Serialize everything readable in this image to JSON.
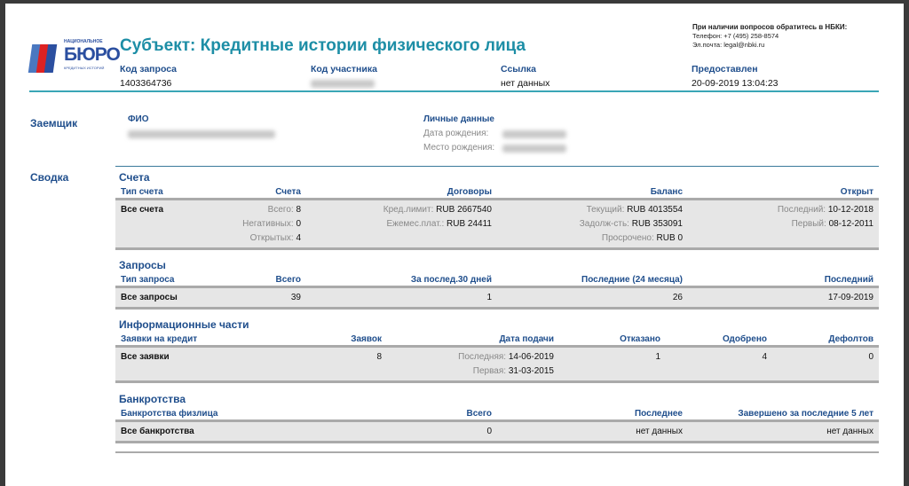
{
  "header": {
    "logo_text": {
      "top": "НАЦИОНАЛЬНОЕ",
      "main": "БЮРО",
      "bottom": "КРЕДИТНЫХ ИСТОРИЙ"
    },
    "title": "Субъект: Кредитные истории физического лица",
    "contact": {
      "heading": "При наличии вопросов обратитесь в НБКИ:",
      "phone": "Телефон: +7 (495) 258-8574",
      "email": "Эл.почта: legal@nbki.ru"
    },
    "fields": [
      {
        "label": "Код запроса",
        "value": "1403364736"
      },
      {
        "label": "Код участника",
        "value": ""
      },
      {
        "label": "Ссылка",
        "value": "нет данных"
      },
      {
        "label": "Предоставлен",
        "value": "20-09-2019 13:04:23"
      }
    ]
  },
  "borrower": {
    "section": "Заемщик",
    "fio_label": "ФИО",
    "personal_label": "Личные данные",
    "birth_date_label": "Дата рождения:",
    "birth_place_label": "Место рождения:"
  },
  "summary": {
    "section": "Сводка",
    "accounts": {
      "title": "Счета",
      "headers": [
        "Тип счета",
        "Счета",
        "Договоры",
        "Баланс",
        "Открыт"
      ],
      "row": {
        "type": "Все счета",
        "accounts": [
          {
            "l": "Всего:",
            "v": "8"
          },
          {
            "l": "Негативных:",
            "v": "0"
          },
          {
            "l": "Открытых:",
            "v": "4"
          }
        ],
        "contracts": [
          {
            "l": "Кред.лимит:",
            "v": "RUB 2667540"
          },
          {
            "l": "Ежемес.плат.:",
            "v": "RUB 24411"
          }
        ],
        "balance": [
          {
            "l": "Текущий:",
            "v": "RUB 4013554"
          },
          {
            "l": "Задолж-сть:",
            "v": "RUB 353091"
          },
          {
            "l": "Просрочено:",
            "v": "RUB 0"
          }
        ],
        "opened": [
          {
            "l": "Последний:",
            "v": "10-12-2018"
          },
          {
            "l": "Первый:",
            "v": "08-12-2011"
          }
        ]
      }
    },
    "inquiries": {
      "title": "Запросы",
      "headers": [
        "Тип запроса",
        "Всего",
        "За послед.30 дней",
        "Последние (24 месяца)",
        "Последний"
      ],
      "row": [
        "Все запросы",
        "39",
        "1",
        "26",
        "17-09-2019"
      ]
    },
    "info_parts": {
      "title": "Информационные части",
      "headers": [
        "Заявки на кредит",
        "Заявок",
        "Дата подачи",
        "Отказано",
        "Одобрено",
        "Дефолтов"
      ],
      "row": {
        "type": "Все заявки",
        "count": "8",
        "dates": [
          {
            "l": "Последняя:",
            "v": "14-06-2019"
          },
          {
            "l": "Первая:",
            "v": "31-03-2015"
          }
        ],
        "rejected": "1",
        "approved": "4",
        "defaults": "0"
      }
    },
    "bankruptcy": {
      "title": "Банкротства",
      "headers": [
        "Банкротства физлица",
        "Всего",
        "Последнее",
        "Завершено за последние 5 лет"
      ],
      "row": [
        "Все банкротства",
        "0",
        "нет данных",
        "нет данных"
      ]
    }
  }
}
